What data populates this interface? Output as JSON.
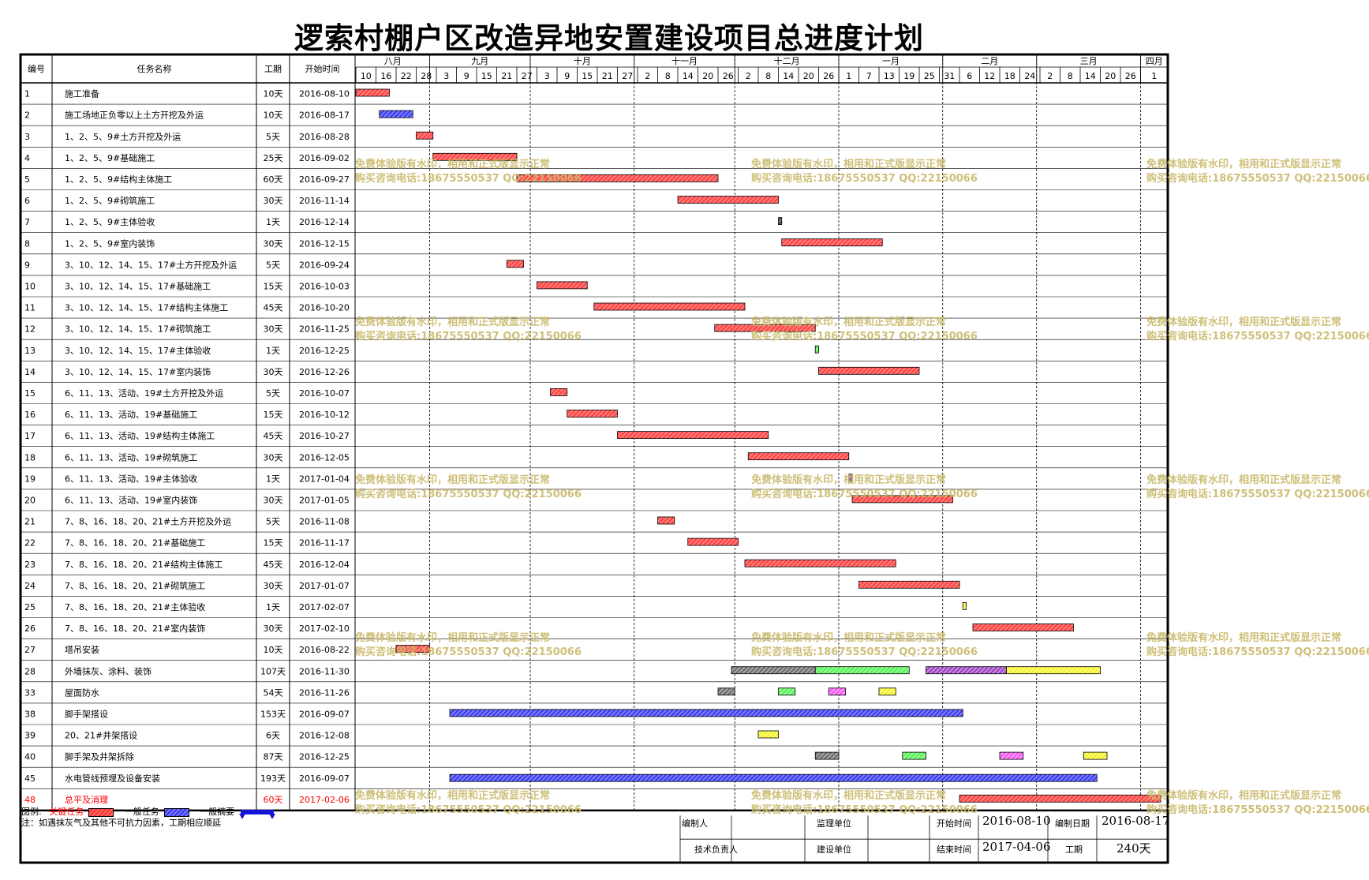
{
  "title": "逻索村棚户区改造异地安置建设项目总进度计划",
  "header": {
    "id": "编号",
    "name": "任务名称",
    "duration": "工期",
    "start": "开始时间"
  },
  "months": [
    "八月",
    "九月",
    "十月",
    "十一月",
    "十二月",
    "一月",
    "二月",
    "三月",
    "四月"
  ],
  "day_ticks": [
    "10",
    "16",
    "22",
    "28",
    "3",
    "9",
    "15",
    "21",
    "27",
    "3",
    "9",
    "15",
    "21",
    "27",
    "2",
    "8",
    "14",
    "20",
    "26",
    "2",
    "8",
    "14",
    "20",
    "26",
    "1",
    "7",
    "13",
    "19",
    "25",
    "31",
    "6",
    "12",
    "18",
    "24",
    "2",
    "8",
    "14",
    "20",
    "26",
    "1"
  ],
  "colors": {
    "critical": "#ff3030",
    "normal": "#3535f0",
    "green": "#66ff66",
    "gray": "#808080",
    "magenta": "#ff66ff",
    "yellow": "#ffff33",
    "purple": "#a040c0",
    "dark": "#555555",
    "red_text": "#ff0000"
  },
  "chart_data": {
    "type": "gantt",
    "title": "逻索村棚户区改造异地安置建设项目总进度计划",
    "x_range": [
      "2016-08-10",
      "2017-04-04"
    ],
    "tasks": [
      {
        "id": "1",
        "name": "施工准备",
        "duration": "10天",
        "start": "2016-08-10",
        "segments": [
          {
            "start": "2016-08-10",
            "days": 10,
            "kind": "critical"
          }
        ]
      },
      {
        "id": "2",
        "name": "施工场地正负零以上土方开挖及外运",
        "duration": "10天",
        "start": "2016-08-17",
        "segments": [
          {
            "start": "2016-08-17",
            "days": 10,
            "kind": "normal"
          }
        ]
      },
      {
        "id": "3",
        "name": "1、2、5、9#土方开挖及外运",
        "duration": "5天",
        "start": "2016-08-28",
        "segments": [
          {
            "start": "2016-08-28",
            "days": 5,
            "kind": "critical"
          }
        ]
      },
      {
        "id": "4",
        "name": "1、2、5、9#基础施工",
        "duration": "25天",
        "start": "2016-09-02",
        "segments": [
          {
            "start": "2016-09-02",
            "days": 25,
            "kind": "critical"
          }
        ]
      },
      {
        "id": "5",
        "name": "1、2、5、9#结构主体施工",
        "duration": "60天",
        "start": "2016-09-27",
        "segments": [
          {
            "start": "2016-09-27",
            "days": 60,
            "kind": "critical"
          }
        ]
      },
      {
        "id": "6",
        "name": "1、2、5、9#砌筑施工",
        "duration": "30天",
        "start": "2016-11-14",
        "segments": [
          {
            "start": "2016-11-14",
            "days": 30,
            "kind": "critical"
          }
        ]
      },
      {
        "id": "7",
        "name": "1、2、5、9#主体验收",
        "duration": "1天",
        "start": "2016-12-14",
        "segments": [
          {
            "start": "2016-12-14",
            "days": 1,
            "kind": "dark"
          }
        ]
      },
      {
        "id": "8",
        "name": "1、2、5、9#室内装饰",
        "duration": "30天",
        "start": "2016-12-15",
        "segments": [
          {
            "start": "2016-12-15",
            "days": 30,
            "kind": "critical"
          }
        ]
      },
      {
        "id": "9",
        "name": "3、10、12、14、15、17#土方开挖及外运",
        "duration": "5天",
        "start": "2016-09-24",
        "segments": [
          {
            "start": "2016-09-24",
            "days": 5,
            "kind": "critical"
          }
        ]
      },
      {
        "id": "10",
        "name": "3、10、12、14、15、17#基础施工",
        "duration": "15天",
        "start": "2016-10-03",
        "segments": [
          {
            "start": "2016-10-03",
            "days": 15,
            "kind": "critical"
          }
        ]
      },
      {
        "id": "11",
        "name": "3、10、12、14、15、17#结构主体施工",
        "duration": "45天",
        "start": "2016-10-20",
        "segments": [
          {
            "start": "2016-10-20",
            "days": 45,
            "kind": "critical"
          }
        ]
      },
      {
        "id": "12",
        "name": "3、10、12、14、15、17#砌筑施工",
        "duration": "30天",
        "start": "2016-11-25",
        "segments": [
          {
            "start": "2016-11-25",
            "days": 30,
            "kind": "critical"
          }
        ]
      },
      {
        "id": "13",
        "name": "3、10、12、14、15、17#主体验收",
        "duration": "1天",
        "start": "2016-12-25",
        "segments": [
          {
            "start": "2016-12-25",
            "days": 1,
            "kind": "green"
          }
        ]
      },
      {
        "id": "14",
        "name": "3、10、12、14、15、17#室内装饰",
        "duration": "30天",
        "start": "2016-12-26",
        "segments": [
          {
            "start": "2016-12-26",
            "days": 30,
            "kind": "critical"
          }
        ]
      },
      {
        "id": "15",
        "name": "6、11、13、活动、19#土方开挖及外运",
        "duration": "5天",
        "start": "2016-10-07",
        "segments": [
          {
            "start": "2016-10-07",
            "days": 5,
            "kind": "critical"
          }
        ]
      },
      {
        "id": "16",
        "name": "6、11、13、活动、19#基础施工",
        "duration": "15天",
        "start": "2016-10-12",
        "segments": [
          {
            "start": "2016-10-12",
            "days": 15,
            "kind": "critical"
          }
        ]
      },
      {
        "id": "17",
        "name": "6、11、13、活动、19#结构主体施工",
        "duration": "45天",
        "start": "2016-10-27",
        "segments": [
          {
            "start": "2016-10-27",
            "days": 45,
            "kind": "critical"
          }
        ]
      },
      {
        "id": "18",
        "name": "6、11、13、活动、19#砌筑施工",
        "duration": "30天",
        "start": "2016-12-05",
        "segments": [
          {
            "start": "2016-12-05",
            "days": 30,
            "kind": "critical"
          }
        ]
      },
      {
        "id": "19",
        "name": "6、11、13、活动、19#主体验收",
        "duration": "1天",
        "start": "2017-01-04",
        "segments": [
          {
            "start": "2017-01-04",
            "days": 1,
            "kind": "purple"
          }
        ]
      },
      {
        "id": "20",
        "name": "6、11、13、活动、19#室内装饰",
        "duration": "30天",
        "start": "2017-01-05",
        "segments": [
          {
            "start": "2017-01-05",
            "days": 30,
            "kind": "critical"
          }
        ]
      },
      {
        "id": "21",
        "name": "7、8、16、18、20、21#土方开挖及外运",
        "duration": "5天",
        "start": "2016-11-08",
        "segments": [
          {
            "start": "2016-11-08",
            "days": 5,
            "kind": "critical"
          }
        ]
      },
      {
        "id": "22",
        "name": "7、8、16、18、20、21#基础施工",
        "duration": "15天",
        "start": "2016-11-17",
        "segments": [
          {
            "start": "2016-11-17",
            "days": 15,
            "kind": "critical"
          }
        ]
      },
      {
        "id": "23",
        "name": "7、8、16、18、20、21#结构主体施工",
        "duration": "45天",
        "start": "2016-12-04",
        "segments": [
          {
            "start": "2016-12-04",
            "days": 45,
            "kind": "critical"
          }
        ]
      },
      {
        "id": "24",
        "name": "7、8、16、18、20、21#砌筑施工",
        "duration": "30天",
        "start": "2017-01-07",
        "segments": [
          {
            "start": "2017-01-07",
            "days": 30,
            "kind": "critical"
          }
        ]
      },
      {
        "id": "25",
        "name": "7、8、16、18、20、21#主体验收",
        "duration": "1天",
        "start": "2017-02-07",
        "segments": [
          {
            "start": "2017-02-07",
            "days": 1,
            "kind": "yellow"
          }
        ]
      },
      {
        "id": "26",
        "name": "7、8、16、18、20、21#室内装饰",
        "duration": "30天",
        "start": "2017-02-10",
        "segments": [
          {
            "start": "2017-02-10",
            "days": 30,
            "kind": "critical"
          }
        ]
      },
      {
        "id": "27",
        "name": "塔吊安装",
        "duration": "10天",
        "start": "2016-08-22",
        "segments": [
          {
            "start": "2016-08-22",
            "days": 10,
            "kind": "critical"
          }
        ]
      },
      {
        "id": "28",
        "name": "外墙抹灰、涂料、装饰",
        "duration": "107天",
        "start": "2016-11-30",
        "segments": [
          {
            "start": "2016-11-30",
            "days": 25,
            "kind": "gray"
          },
          {
            "start": "2016-12-25",
            "days": 28,
            "kind": "green"
          },
          {
            "start": "2017-01-27",
            "days": 24,
            "kind": "purple"
          },
          {
            "start": "2017-02-20",
            "days": 28,
            "kind": "yellow"
          }
        ]
      },
      {
        "id": "33",
        "name": "屋面防水",
        "duration": "54天",
        "start": "2016-11-26",
        "segments": [
          {
            "start": "2016-11-26",
            "days": 5,
            "kind": "gray"
          },
          {
            "start": "2016-12-14",
            "days": 5,
            "kind": "green"
          },
          {
            "start": "2016-12-29",
            "days": 5,
            "kind": "magenta"
          },
          {
            "start": "2017-01-13",
            "days": 5,
            "kind": "yellow"
          }
        ]
      },
      {
        "id": "38",
        "name": "脚手架搭设",
        "duration": "153天",
        "start": "2016-09-07",
        "segments": [
          {
            "start": "2016-09-07",
            "days": 153,
            "kind": "normal"
          }
        ]
      },
      {
        "id": "39",
        "name": "20、21#井架搭设",
        "duration": "6天",
        "start": "2016-12-08",
        "segments": [
          {
            "start": "2016-12-08",
            "days": 6,
            "kind": "yellow"
          }
        ]
      },
      {
        "id": "40",
        "name": "脚手架及井架拆除",
        "duration": "87天",
        "start": "2016-12-25",
        "segments": [
          {
            "start": "2016-12-25",
            "days": 7,
            "kind": "gray"
          },
          {
            "start": "2017-01-20",
            "days": 7,
            "kind": "green"
          },
          {
            "start": "2017-02-18",
            "days": 7,
            "kind": "magenta"
          },
          {
            "start": "2017-03-15",
            "days": 7,
            "kind": "yellow"
          }
        ]
      },
      {
        "id": "45",
        "name": "水电管线预埋及设备安装",
        "duration": "193天",
        "start": "2016-09-07",
        "segments": [
          {
            "start": "2016-09-07",
            "days": 193,
            "kind": "normal"
          }
        ]
      },
      {
        "id": "48",
        "name": "总平及消理",
        "duration": "60天",
        "start": "2017-02-06",
        "segments": [
          {
            "start": "2017-02-06",
            "days": 60,
            "kind": "critical"
          }
        ],
        "highlight": true
      }
    ]
  },
  "legend": {
    "label": "图例:",
    "critical": "关键任务",
    "normal": "一般任务",
    "summary": "一般摘要",
    "note": "注：如遇抹灰气及其他不可抗力因素，工期相应顺延"
  },
  "footer": {
    "compiler": "编制人",
    "supervisor": "监理单位",
    "start_label": "开始时间",
    "start_value": "2016-08-10",
    "edit_date_label": "编制日期",
    "edit_date_value": "2016-08-17",
    "tech_lead": "技术负责人",
    "build_unit": "建设单位",
    "end_label": "结束时间",
    "end_value": "2017-04-06",
    "duration_label": "工期",
    "duration_value": "240天"
  },
  "watermark": {
    "line1": "免费体验版有水印，相用和正式版显示正常",
    "line2": "购买咨询电话:18675550537 QQ:22150066"
  }
}
